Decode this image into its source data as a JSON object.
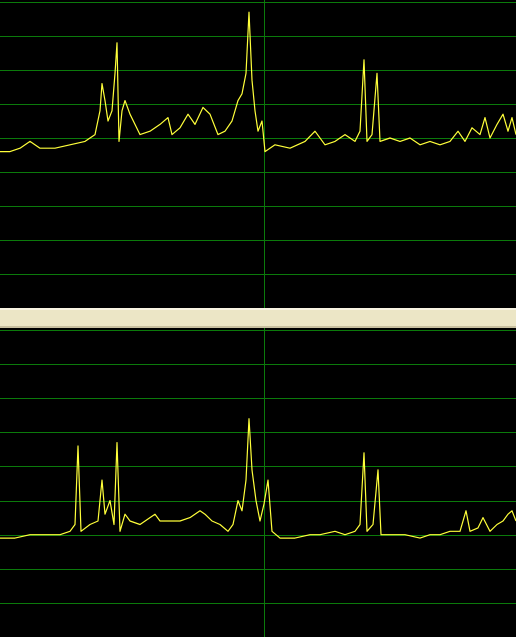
{
  "chart_data": [
    {
      "type": "line",
      "color": "#ffff3a",
      "grid_color": "#0b7a0b",
      "grid": true,
      "xlim": [
        0,
        516
      ],
      "xticks": [
        264
      ],
      "ylim": [
        0,
        9.06
      ],
      "yticks": [
        1,
        2,
        3,
        4,
        5,
        6,
        7,
        8,
        9
      ],
      "x": [
        0,
        10,
        20,
        30,
        40,
        55,
        70,
        85,
        95,
        100,
        102,
        105,
        108,
        112,
        115,
        117,
        119,
        122,
        125,
        130,
        140,
        150,
        160,
        168,
        172,
        180,
        188,
        195,
        203,
        210,
        218,
        225,
        232,
        238,
        242,
        246,
        249,
        252,
        255,
        258,
        262,
        265,
        275,
        290,
        305,
        315,
        325,
        335,
        345,
        355,
        360,
        364,
        367,
        372,
        377,
        380,
        390,
        400,
        410,
        420,
        430,
        440,
        450,
        458,
        465,
        472,
        480,
        485,
        490,
        497,
        503,
        508,
        512,
        516
      ],
      "values": [
        4.6,
        4.6,
        4.7,
        4.9,
        4.7,
        4.7,
        4.8,
        4.9,
        5.1,
        5.8,
        6.6,
        6.1,
        5.5,
        5.8,
        6.9,
        7.8,
        4.9,
        5.8,
        6.1,
        5.7,
        5.1,
        5.2,
        5.4,
        5.6,
        5.1,
        5.3,
        5.7,
        5.4,
        5.9,
        5.7,
        5.1,
        5.2,
        5.5,
        6.1,
        6.3,
        6.9,
        8.7,
        6.7,
        5.8,
        5.2,
        5.5,
        4.6,
        4.8,
        4.7,
        4.9,
        5.2,
        4.8,
        4.9,
        5.1,
        4.9,
        5.2,
        7.3,
        4.9,
        5.1,
        6.9,
        4.9,
        5.0,
        4.9,
        5.0,
        4.8,
        4.9,
        4.8,
        4.9,
        5.2,
        4.9,
        5.3,
        5.1,
        5.6,
        5.0,
        5.4,
        5.7,
        5.2,
        5.6,
        5.1
      ]
    },
    {
      "type": "line",
      "color": "#ffff3a",
      "grid_color": "#0b7a0b",
      "grid": true,
      "xlim": [
        0,
        516
      ],
      "xticks": [
        264
      ],
      "ylim": [
        0,
        9.06
      ],
      "yticks": [
        1,
        2,
        3,
        4,
        5,
        6,
        7,
        8,
        9
      ],
      "x": [
        0,
        15,
        30,
        45,
        60,
        70,
        75,
        78,
        81,
        90,
        98,
        102,
        105,
        110,
        114,
        117,
        120,
        125,
        130,
        140,
        150,
        155,
        160,
        170,
        180,
        190,
        200,
        205,
        212,
        220,
        228,
        233,
        238,
        242,
        246,
        249,
        252,
        256,
        260,
        264,
        268,
        272,
        280,
        295,
        310,
        320,
        335,
        345,
        355,
        360,
        364,
        367,
        373,
        378,
        381,
        390,
        405,
        420,
        430,
        440,
        450,
        460,
        466,
        470,
        478,
        483,
        490,
        497,
        503,
        508,
        512,
        516
      ],
      "values": [
        2.9,
        2.9,
        3.0,
        3.0,
        3.0,
        3.1,
        3.3,
        5.6,
        3.1,
        3.3,
        3.4,
        4.6,
        3.6,
        4.0,
        3.3,
        5.7,
        3.1,
        3.6,
        3.4,
        3.3,
        3.5,
        3.6,
        3.4,
        3.4,
        3.4,
        3.5,
        3.7,
        3.6,
        3.4,
        3.3,
        3.1,
        3.3,
        4.0,
        3.7,
        4.6,
        6.4,
        4.9,
        4.0,
        3.4,
        3.9,
        4.6,
        3.1,
        2.9,
        2.9,
        3.0,
        3.0,
        3.1,
        3.0,
        3.1,
        3.3,
        5.4,
        3.1,
        3.3,
        4.9,
        3.0,
        3.0,
        3.0,
        2.9,
        3.0,
        3.0,
        3.1,
        3.1,
        3.7,
        3.1,
        3.2,
        3.5,
        3.1,
        3.3,
        3.4,
        3.6,
        3.7,
        3.4
      ]
    }
  ]
}
